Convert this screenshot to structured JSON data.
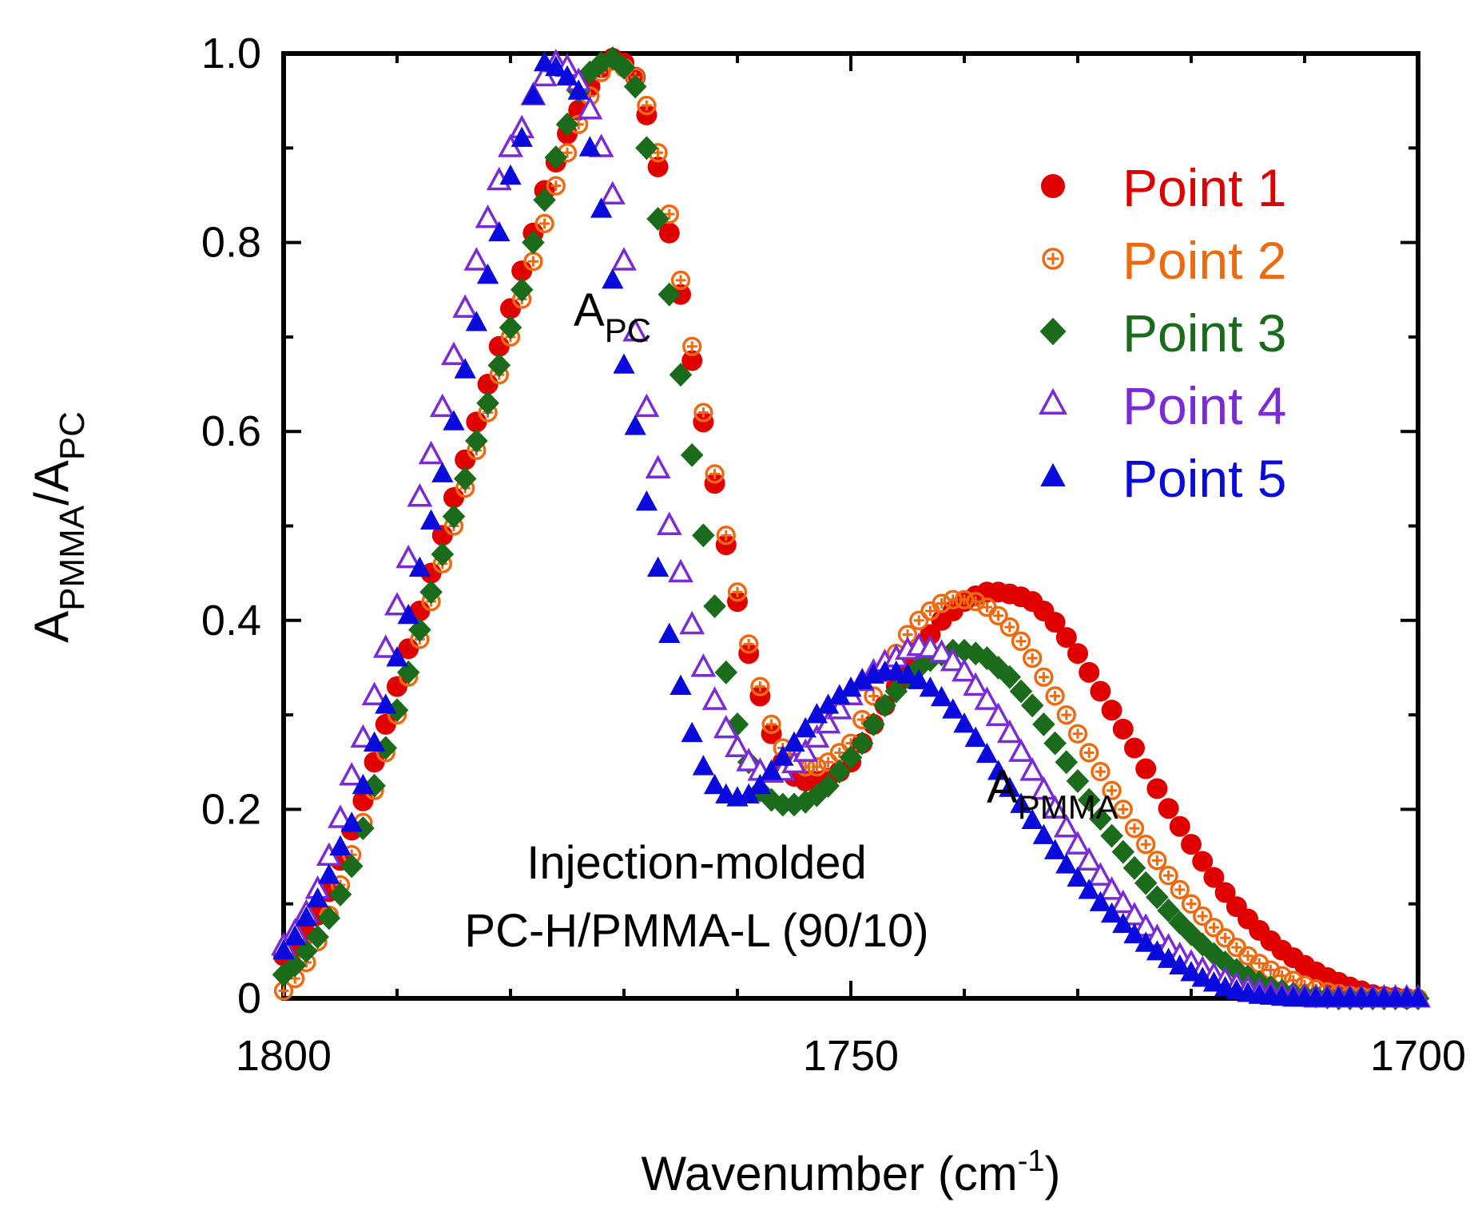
{
  "chart_data": {
    "type": "scatter",
    "title": "",
    "xlabel": {
      "main": "Wavenumber (cm",
      "sup": "-1",
      "close": ")"
    },
    "ylabel": {
      "a1": "A",
      "s1": "PMMA",
      "slash": "/A",
      "s2": "PC"
    },
    "xlim": [
      1800,
      1700
    ],
    "ylim": [
      0,
      1.0
    ],
    "x_ticks": [
      1800,
      1750,
      1700
    ],
    "x_tick_labels": [
      "1800",
      "1750",
      "1700"
    ],
    "y_ticks": [
      0,
      0.2,
      0.4,
      0.6,
      0.8,
      1.0
    ],
    "y_tick_labels": [
      "0",
      "0.2",
      "0.4",
      "0.6",
      "0.8",
      "1.0"
    ],
    "legend_position": "top-right",
    "annotations": {
      "apc_main": "A",
      "apc_sub": "PC",
      "apmma_main": "A",
      "apmma_sub": "PMMA",
      "sample_line1": "Injection-molded",
      "sample_line2": "PC-H/PMMA-L (90/10)"
    },
    "x": [
      1800,
      1799,
      1798,
      1797,
      1796,
      1795,
      1794,
      1793,
      1792,
      1791,
      1790,
      1789,
      1788,
      1787,
      1786,
      1785,
      1784,
      1783,
      1782,
      1781,
      1780,
      1779,
      1778,
      1777,
      1776,
      1775,
      1774,
      1773,
      1772,
      1771,
      1770,
      1769,
      1768,
      1767,
      1766,
      1765,
      1764,
      1763,
      1762,
      1761,
      1760,
      1759,
      1758,
      1757,
      1756,
      1755,
      1754,
      1753,
      1752,
      1751,
      1750,
      1749,
      1748,
      1747,
      1746,
      1745,
      1744,
      1743,
      1742,
      1741,
      1740,
      1739,
      1738,
      1737,
      1736,
      1735,
      1734,
      1733,
      1732,
      1731,
      1730,
      1729,
      1728,
      1727,
      1726,
      1725,
      1724,
      1723,
      1722,
      1721,
      1720,
      1719,
      1718,
      1717,
      1716,
      1715,
      1714,
      1713,
      1712,
      1711,
      1710,
      1709,
      1708,
      1707,
      1706,
      1705,
      1704,
      1703,
      1702,
      1701,
      1700
    ],
    "series": [
      {
        "name": "Point 1",
        "color": "#e00000",
        "marker": "circle-filled",
        "values": [
          0.045,
          0.052,
          0.068,
          0.088,
          0.113,
          0.146,
          0.178,
          0.209,
          0.25,
          0.29,
          0.33,
          0.37,
          0.41,
          0.45,
          0.49,
          0.53,
          0.57,
          0.61,
          0.65,
          0.69,
          0.73,
          0.77,
          0.81,
          0.855,
          0.885,
          0.915,
          0.94,
          0.965,
          0.985,
          0.995,
          0.99,
          0.975,
          0.935,
          0.88,
          0.81,
          0.745,
          0.675,
          0.61,
          0.545,
          0.48,
          0.42,
          0.365,
          0.32,
          0.28,
          0.25,
          0.235,
          0.23,
          0.23,
          0.233,
          0.24,
          0.25,
          0.27,
          0.29,
          0.31,
          0.33,
          0.35,
          0.37,
          0.385,
          0.4,
          0.41,
          0.42,
          0.426,
          0.43,
          0.43,
          0.428,
          0.425,
          0.42,
          0.41,
          0.398,
          0.382,
          0.365,
          0.345,
          0.325,
          0.305,
          0.285,
          0.265,
          0.243,
          0.222,
          0.201,
          0.182,
          0.163,
          0.145,
          0.128,
          0.112,
          0.097,
          0.084,
          0.072,
          0.061,
          0.051,
          0.043,
          0.035,
          0.028,
          0.022,
          0.017,
          0.012,
          0.008,
          0.004,
          0.002,
          0.001,
          0.0
        ]
      },
      {
        "name": "Point 2",
        "color": "#ee6a10",
        "marker": "circle-cross",
        "values": [
          0.008,
          0.021,
          0.038,
          0.06,
          0.088,
          0.12,
          0.152,
          0.186,
          0.22,
          0.26,
          0.3,
          0.34,
          0.38,
          0.42,
          0.46,
          0.5,
          0.54,
          0.58,
          0.62,
          0.66,
          0.7,
          0.74,
          0.78,
          0.82,
          0.86,
          0.895,
          0.925,
          0.955,
          0.98,
          0.992,
          0.985,
          0.975,
          0.945,
          0.895,
          0.83,
          0.76,
          0.69,
          0.62,
          0.555,
          0.49,
          0.43,
          0.375,
          0.33,
          0.29,
          0.265,
          0.25,
          0.245,
          0.245,
          0.25,
          0.26,
          0.27,
          0.295,
          0.32,
          0.345,
          0.365,
          0.385,
          0.4,
          0.41,
          0.418,
          0.422,
          0.422,
          0.42,
          0.414,
          0.405,
          0.393,
          0.378,
          0.36,
          0.34,
          0.32,
          0.3,
          0.28,
          0.26,
          0.24,
          0.22,
          0.2,
          0.18,
          0.163,
          0.146,
          0.13,
          0.115,
          0.1,
          0.087,
          0.075,
          0.064,
          0.054,
          0.045,
          0.037,
          0.03,
          0.024,
          0.019,
          0.014,
          0.01,
          0.007,
          0.005,
          0.003,
          0.002,
          0.001,
          0.001,
          0.0,
          0.0,
          0.0
        ]
      },
      {
        "name": "Point 3",
        "color": "#1a6b1a",
        "marker": "diamond-filled",
        "values": [
          0.025,
          0.035,
          0.05,
          0.065,
          0.085,
          0.11,
          0.14,
          0.18,
          0.225,
          0.265,
          0.305,
          0.345,
          0.39,
          0.43,
          0.47,
          0.51,
          0.55,
          0.59,
          0.63,
          0.67,
          0.71,
          0.75,
          0.8,
          0.845,
          0.89,
          0.925,
          0.96,
          0.98,
          0.99,
          0.995,
          0.985,
          0.965,
          0.9,
          0.825,
          0.745,
          0.66,
          0.575,
          0.49,
          0.415,
          0.345,
          0.29,
          0.25,
          0.22,
          0.21,
          0.205,
          0.205,
          0.208,
          0.215,
          0.225,
          0.24,
          0.255,
          0.27,
          0.29,
          0.31,
          0.325,
          0.34,
          0.35,
          0.358,
          0.364,
          0.368,
          0.368,
          0.365,
          0.36,
          0.35,
          0.34,
          0.325,
          0.31,
          0.29,
          0.27,
          0.25,
          0.23,
          0.21,
          0.19,
          0.172,
          0.155,
          0.138,
          0.122,
          0.107,
          0.093,
          0.08,
          0.068,
          0.057,
          0.047,
          0.038,
          0.03,
          0.023,
          0.017,
          0.012,
          0.008,
          0.005,
          0.003,
          0.002,
          0.001,
          0.0,
          0.0,
          0.0,
          0.0,
          0.0,
          0.0,
          0.0,
          0.0
        ]
      },
      {
        "name": "Point 4",
        "color": "#7a2bd6",
        "marker": "triangle-open",
        "values": [
          0.055,
          0.07,
          0.09,
          0.115,
          0.15,
          0.19,
          0.235,
          0.275,
          0.32,
          0.37,
          0.415,
          0.465,
          0.53,
          0.575,
          0.625,
          0.68,
          0.73,
          0.78,
          0.825,
          0.865,
          0.9,
          0.92,
          0.955,
          0.975,
          0.99,
          0.985,
          0.97,
          0.94,
          0.9,
          0.85,
          0.78,
          0.705,
          0.625,
          0.56,
          0.5,
          0.45,
          0.395,
          0.35,
          0.315,
          0.285,
          0.265,
          0.25,
          0.24,
          0.238,
          0.24,
          0.248,
          0.26,
          0.275,
          0.29,
          0.305,
          0.32,
          0.335,
          0.345,
          0.355,
          0.36,
          0.368,
          0.372,
          0.37,
          0.365,
          0.356,
          0.345,
          0.33,
          0.315,
          0.298,
          0.28,
          0.26,
          0.24,
          0.22,
          0.2,
          0.18,
          0.162,
          0.145,
          0.129,
          0.114,
          0.1,
          0.087,
          0.075,
          0.064,
          0.054,
          0.045,
          0.037,
          0.03,
          0.024,
          0.019,
          0.014,
          0.01,
          0.007,
          0.005,
          0.003,
          0.002,
          0.001,
          0.0,
          0.0,
          0.0,
          0.0,
          0.0,
          0.0,
          0.0,
          0.0,
          0.0,
          0.0
        ]
      },
      {
        "name": "Point 5",
        "color": "#0a0adc",
        "marker": "triangle-filled",
        "values": [
          0.05,
          0.065,
          0.085,
          0.105,
          0.13,
          0.16,
          0.185,
          0.225,
          0.27,
          0.31,
          0.36,
          0.405,
          0.455,
          0.505,
          0.555,
          0.61,
          0.665,
          0.715,
          0.765,
          0.81,
          0.87,
          0.91,
          0.955,
          0.99,
          0.985,
          0.975,
          0.96,
          0.9,
          0.835,
          0.76,
          0.67,
          0.605,
          0.525,
          0.455,
          0.385,
          0.33,
          0.28,
          0.245,
          0.225,
          0.215,
          0.212,
          0.215,
          0.225,
          0.24,
          0.255,
          0.27,
          0.285,
          0.3,
          0.31,
          0.32,
          0.328,
          0.336,
          0.342,
          0.345,
          0.345,
          0.342,
          0.336,
          0.328,
          0.318,
          0.305,
          0.29,
          0.275,
          0.258,
          0.24,
          0.222,
          0.205,
          0.188,
          0.172,
          0.156,
          0.141,
          0.127,
          0.114,
          0.101,
          0.089,
          0.078,
          0.067,
          0.058,
          0.049,
          0.041,
          0.034,
          0.027,
          0.021,
          0.016,
          0.011,
          0.008,
          0.005,
          0.003,
          0.002,
          0.001,
          0.0,
          0.0,
          0.0,
          0.0,
          0.0,
          0.0,
          0.0,
          0.0,
          0.0,
          0.0,
          0.0,
          0.0
        ]
      }
    ]
  }
}
